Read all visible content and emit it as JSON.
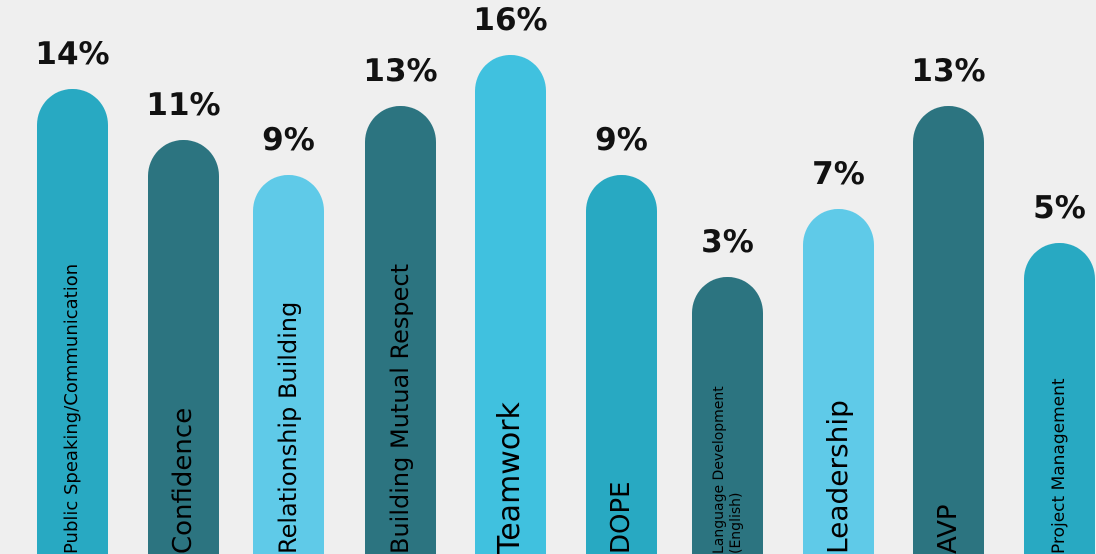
{
  "chart_data": {
    "type": "bar",
    "categories": [
      [
        "Public Speaking/Communication"
      ],
      [
        "Confidence"
      ],
      [
        "Relationship Building"
      ],
      [
        "Building Mutual Respect"
      ],
      [
        "Teamwork"
      ],
      [
        "DOPE"
      ],
      [
        "Language Development",
        "(English)"
      ],
      [
        "Leadership"
      ],
      [
        "AVP"
      ],
      [
        "Project Management"
      ]
    ],
    "values": [
      14,
      11,
      9,
      13,
      16,
      9,
      3,
      7,
      13,
      5
    ],
    "value_labels": [
      "14%",
      "11%",
      "9%",
      "13%",
      "16%",
      "9%",
      "3%",
      "7%",
      "13%",
      "5%"
    ],
    "bar_colors": [
      "#28a9c2",
      "#2c7480",
      "#5fcae8",
      "#2c7480",
      "#40c1df",
      "#28a9c2",
      "#2c7480",
      "#5fcae8",
      "#2c7480",
      "#28a9c2"
    ],
    "label_color": "#000000",
    "value_label_color": "#111111",
    "background": "#efefef",
    "grid": false,
    "legend": "none"
  }
}
